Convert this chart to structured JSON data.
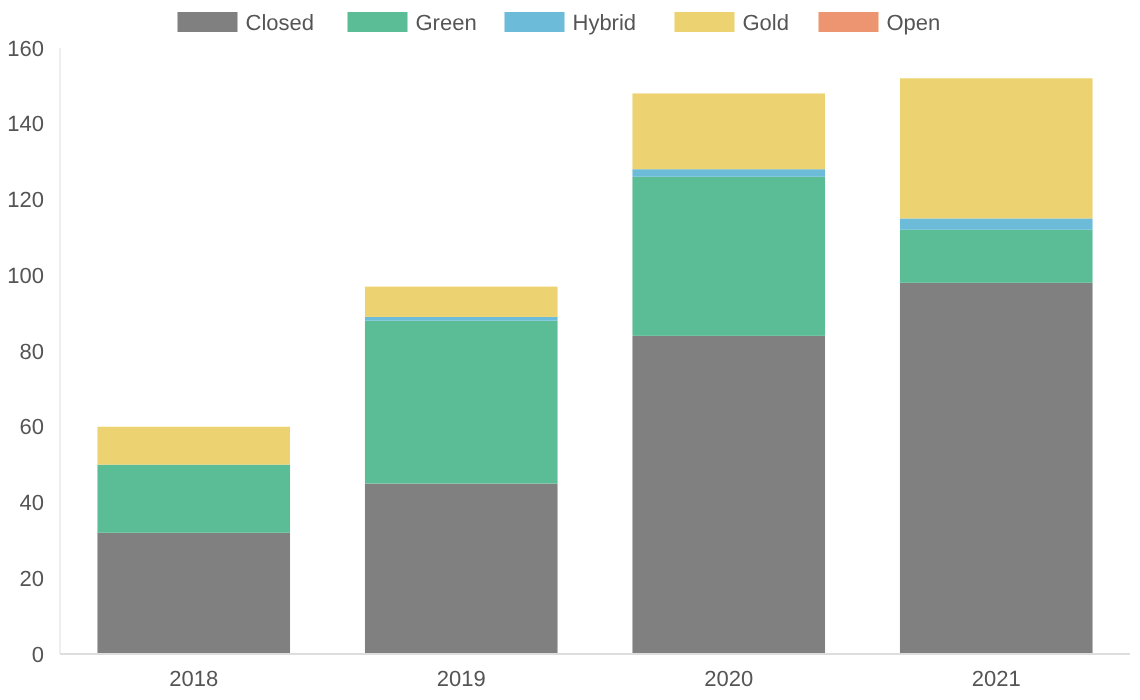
{
  "chart_data": {
    "type": "bar",
    "stacked": true,
    "categories": [
      "2018",
      "2019",
      "2020",
      "2021"
    ],
    "series": [
      {
        "name": "Closed",
        "color": "#808080",
        "values": [
          32,
          45,
          84,
          98
        ]
      },
      {
        "name": "Green",
        "color": "#5bbd96",
        "values": [
          18,
          43,
          42,
          14
        ]
      },
      {
        "name": "Hybrid",
        "color": "#6bbbd9",
        "values": [
          0,
          1,
          2,
          3
        ]
      },
      {
        "name": "Gold",
        "color": "#ecd270",
        "values": [
          10,
          8,
          20,
          37
        ]
      },
      {
        "name": "Open",
        "color": "#ec9570",
        "values": [
          0,
          0,
          0,
          0
        ]
      }
    ],
    "ylim": [
      0,
      160
    ],
    "yticks": [
      0,
      20,
      40,
      60,
      80,
      100,
      120,
      140,
      160
    ],
    "grid": false,
    "legend": "top"
  }
}
